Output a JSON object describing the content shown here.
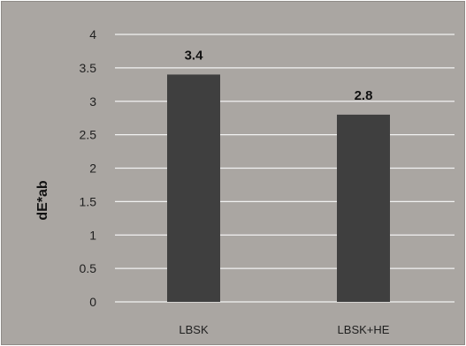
{
  "chart_data": {
    "type": "bar",
    "categories": [
      "LBSK",
      "LBSK+HE"
    ],
    "values": [
      3.4,
      2.8
    ],
    "value_labels": [
      "3.4",
      "2.8"
    ],
    "title": "",
    "xlabel": "",
    "ylabel": "dE*ab",
    "ylim": [
      0,
      4
    ],
    "yticks": [
      "0",
      "0.5",
      "1",
      "1.5",
      "2",
      "2.5",
      "3",
      "3.5",
      "4"
    ],
    "grid": true,
    "legend": "none",
    "colors": {
      "plot_background": "#aaa6a2",
      "bar": "#3f3f3f",
      "gridline": "#f2f2f2"
    }
  }
}
